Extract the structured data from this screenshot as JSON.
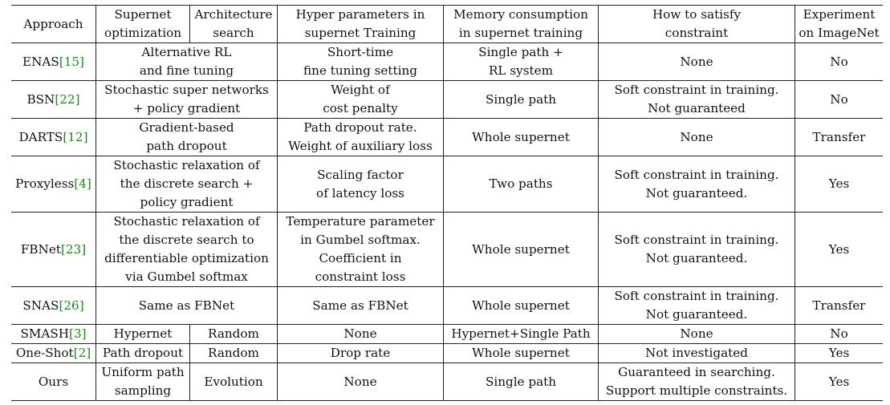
{
  "header": {
    "approach": "Approach",
    "supernet_opt": [
      "Supernet",
      "optimization"
    ],
    "arch_search": [
      "Architecture",
      "search"
    ],
    "hyper": [
      "Hyper parameters in",
      "supernet Training"
    ],
    "memory": [
      "Memory consumption",
      "in supernet training"
    ],
    "constraint": [
      "How to satisfy",
      "constraint"
    ],
    "imagenet": [
      "Experiment",
      "on ImageNet"
    ]
  },
  "rows": [
    {
      "name": "ENAS",
      "cite": "[15]",
      "method": [
        "Alternative RL",
        "and fine tuning"
      ],
      "hyper": [
        "Short-time",
        "fine tuning setting"
      ],
      "memory": [
        "Single path +",
        "RL system"
      ],
      "constraint": [
        "None"
      ],
      "imagenet": "No"
    },
    {
      "name": "BSN",
      "cite": "[22]",
      "method": [
        "Stochastic super networks",
        "+ policy gradient"
      ],
      "hyper": [
        "Weight of",
        "cost penalty"
      ],
      "memory": [
        "Single path"
      ],
      "constraint": [
        "Soft constraint in training.",
        "Not guaranteed"
      ],
      "imagenet": "No"
    },
    {
      "name": "DARTS",
      "cite": "[12]",
      "method": [
        "Gradient-based",
        "path dropout"
      ],
      "hyper": [
        "Path dropout rate.",
        "Weight of auxiliary loss"
      ],
      "memory": [
        "Whole supernet"
      ],
      "constraint": [
        "None"
      ],
      "imagenet": "Transfer"
    },
    {
      "name": "Proxyless",
      "cite": "[4]",
      "method": [
        "Stochastic relaxation of",
        "the discrete search +",
        "policy gradient"
      ],
      "hyper": [
        "Scaling factor",
        "of latency loss"
      ],
      "memory": [
        "Two paths"
      ],
      "constraint": [
        "Soft constraint in training.",
        "Not guaranteed."
      ],
      "imagenet": "Yes"
    },
    {
      "name": "FBNet",
      "cite": "[23]",
      "method": [
        "Stochastic relaxation of",
        "the discrete search to",
        "differentiable optimization",
        "via Gumbel softmax"
      ],
      "hyper": [
        "Temperature parameter",
        "in Gumbel softmax.",
        "Coefficient in",
        "constraint loss"
      ],
      "memory": [
        "Whole supernet"
      ],
      "constraint": [
        "Soft constraint in training.",
        "Not guaranteed."
      ],
      "imagenet": "Yes"
    },
    {
      "name": "SNAS",
      "cite": "[26]",
      "method": [
        "Same as FBNet"
      ],
      "hyper": [
        "Same as FBNet"
      ],
      "memory": [
        "Whole supernet"
      ],
      "constraint": [
        "Soft constraint in training.",
        "Not guaranteed."
      ],
      "imagenet": "Transfer"
    }
  ],
  "split_rows": [
    {
      "name": "SMASH",
      "cite": "[3]",
      "supernet": [
        "Hypernet"
      ],
      "search": [
        "Random"
      ],
      "hyper": [
        "None"
      ],
      "memory": [
        "Hypernet+Single Path"
      ],
      "constraint": [
        "None"
      ],
      "imagenet": "No"
    },
    {
      "name": "One-Shot",
      "cite": "[2]",
      "supernet": [
        "Path dropout"
      ],
      "search": [
        "Random"
      ],
      "hyper": [
        "Drop rate"
      ],
      "memory": [
        "Whole supernet"
      ],
      "constraint": [
        "Not investigated"
      ],
      "imagenet": "Yes"
    },
    {
      "name": "Ours",
      "cite": "",
      "supernet": [
        "Uniform path",
        "sampling"
      ],
      "search": [
        "Evolution"
      ],
      "hyper": [
        "None"
      ],
      "memory": [
        "Single path"
      ],
      "constraint": [
        "Guaranteed in searching.",
        "Support multiple constraints."
      ],
      "imagenet": "Yes"
    }
  ]
}
